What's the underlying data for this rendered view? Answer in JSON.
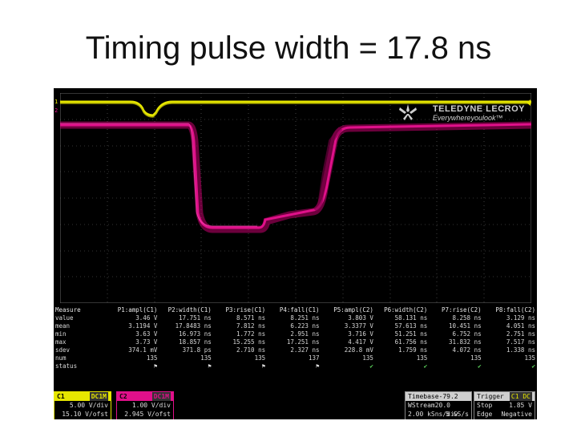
{
  "slide": {
    "title": "Timing pulse width = 17.8 ns"
  },
  "scope": {
    "brand": "TELEDYNE LECROY",
    "tagline": "Everywhereyoulook™",
    "ch1_marker": "1",
    "ch2_marker": "2",
    "colors": {
      "ch1": "#e6e600",
      "ch2": "#e0108a",
      "grid": "#6a6a6a",
      "background": "#000000"
    },
    "measurements": {
      "row_header": "Measure",
      "columns": [
        "P1:ampl(C1)",
        "P2:width(C1)",
        "P3:rise(C1)",
        "P4:fall(C1)",
        "P5:ampl(C2)",
        "P6:width(C2)",
        "P7:rise(C2)",
        "P8:fall(C2)"
      ],
      "rows": [
        {
          "label": "value",
          "cells": [
            "3.46 V",
            "17.751 ns",
            "8.571 ns",
            "8.251 ns",
            "3.803 V",
            "58.131 ns",
            "8.258 ns",
            "3.129 ns"
          ]
        },
        {
          "label": "mean",
          "cells": [
            "3.1194 V",
            "17.8483 ns",
            "7.812 ns",
            "6.223 ns",
            "3.3377 V",
            "57.613 ns",
            "10.451 ns",
            "4.051 ns"
          ]
        },
        {
          "label": "min",
          "cells": [
            "3.63 V",
            "16.973 ns",
            "1.772 ns",
            "2.951 ns",
            "3.716 V",
            "51.251 ns",
            "6.752 ns",
            "2.751 ns"
          ]
        },
        {
          "label": "max",
          "cells": [
            "3.73 V",
            "18.857 ns",
            "15.255 ns",
            "17.251 ns",
            "4.417 V",
            "61.756 ns",
            "31.832 ns",
            "7.517 ns"
          ]
        },
        {
          "label": "sdev",
          "cells": [
            "374.1 mV",
            "371.8 ps",
            "2.710 ns",
            "2.327 ns",
            "228.8 mV",
            "1.759 ns",
            "4.072 ns",
            "1.338 ns"
          ]
        },
        {
          "label": "num",
          "cells": [
            "135",
            "135",
            "135",
            "137",
            "135",
            "135",
            "135",
            "135"
          ]
        },
        {
          "label": "status",
          "cells": [
            "⚑",
            "⚑",
            "⚑",
            "⚑",
            "✔",
            "✔",
            "✔",
            "✔"
          ]
        }
      ]
    },
    "channels": {
      "c1": {
        "name": "C1",
        "coupling": "DC1M",
        "scale": "5.00 V/div",
        "offset": "15.10 V/ofst"
      },
      "c2": {
        "name": "C2",
        "coupling": "DC1M",
        "scale": "1.00 V/div",
        "offset": "2.945 V/ofst"
      }
    },
    "timebase": {
      "label": "Timebase",
      "delay": "-79.2 ns",
      "mode": "WStream",
      "div": "20.0 ns/div",
      "samples": "2.00 kS",
      "rate": "5 GS/s"
    },
    "trigger": {
      "label": "Trigger",
      "coupling": "C1 DC",
      "mode": "Stop",
      "level": "1.85 V",
      "type": "Edge",
      "slope": "Negative"
    }
  }
}
